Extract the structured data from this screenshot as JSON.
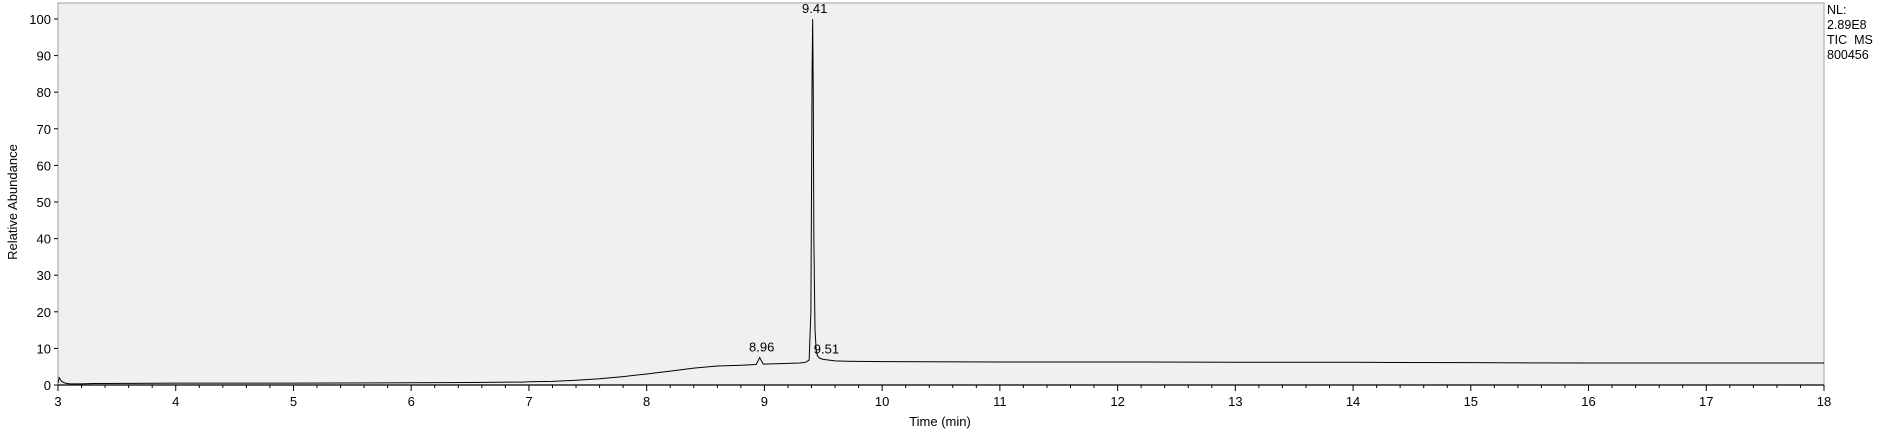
{
  "chart_data": {
    "type": "line",
    "title": "",
    "xlabel": "Time (min)",
    "ylabel": "Relative Abundance",
    "xlim": [
      3,
      18
    ],
    "ylim": [
      0,
      100
    ],
    "x_ticks": [
      "3",
      "4",
      "5",
      "6",
      "7",
      "8",
      "9",
      "10",
      "11",
      "12",
      "13",
      "14",
      "15",
      "16",
      "17",
      "18"
    ],
    "y_ticks": [
      "0",
      "10",
      "20",
      "30",
      "40",
      "50",
      "60",
      "70",
      "80",
      "90",
      "100"
    ],
    "info_lines": [
      "NL:",
      "2.89E8",
      "TIC  MS",
      "800456"
    ],
    "peak_labels": [
      {
        "text": "9.41",
        "x": 9.41,
        "y": 100
      },
      {
        "text": "8.96",
        "x": 8.96,
        "y": 7.5
      },
      {
        "text": "9.51",
        "x": 9.51,
        "y": 7.0
      }
    ],
    "colors": {
      "plot_background": "#f0f0f0",
      "trace": "#000000"
    },
    "series": [
      {
        "x": [
          3.0,
          3.01,
          3.03,
          3.06,
          3.1,
          3.2,
          3.3,
          4.0,
          5.0,
          6.0,
          6.5,
          6.95,
          7.0,
          7.2,
          7.4,
          7.6,
          7.8,
          8.0,
          8.2,
          8.4,
          8.6,
          8.8,
          8.93,
          8.96,
          8.99,
          9.1,
          9.2,
          9.3,
          9.35,
          9.38,
          9.395,
          9.405,
          9.41,
          9.415,
          9.42,
          9.43,
          9.44,
          9.45,
          9.47,
          9.5,
          9.55,
          9.6,
          9.7,
          10.0,
          11.0,
          12.0,
          13.0,
          14.0,
          15.0,
          16.0,
          17.0,
          18.0
        ],
        "y": [
          0.5,
          2.0,
          1.0,
          0.5,
          0.3,
          0.3,
          0.4,
          0.5,
          0.5,
          0.6,
          0.7,
          0.8,
          0.9,
          1.0,
          1.3,
          1.7,
          2.3,
          3.0,
          3.8,
          4.6,
          5.2,
          5.4,
          5.6,
          7.5,
          5.7,
          5.8,
          5.9,
          6.0,
          6.2,
          6.8,
          20.0,
          85.0,
          100.0,
          80.0,
          40.0,
          15.0,
          9.5,
          8.0,
          7.3,
          7.0,
          6.8,
          6.6,
          6.5,
          6.4,
          6.3,
          6.3,
          6.2,
          6.2,
          6.1,
          6.0,
          6.0,
          6.0
        ]
      }
    ]
  }
}
